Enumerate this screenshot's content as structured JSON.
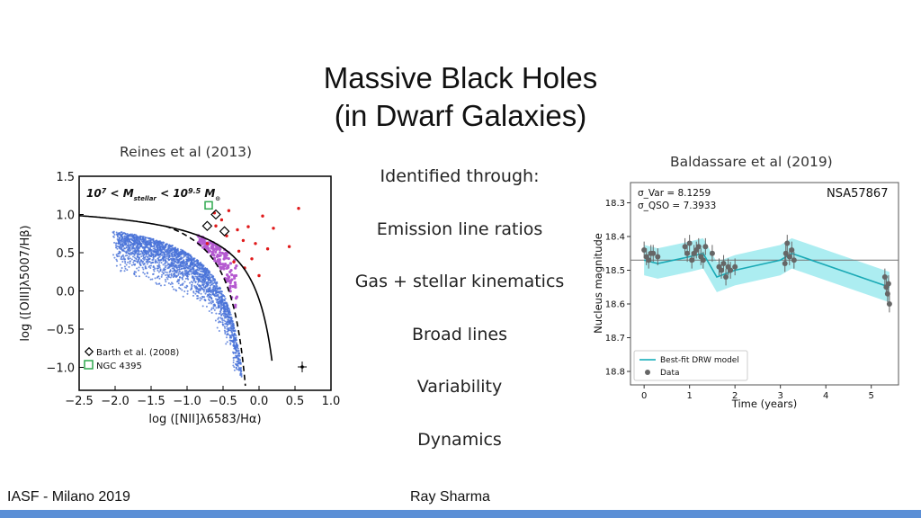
{
  "slide": {
    "title_line1": "Massive Black Holes",
    "title_line2": "(in Dwarf Galaxies)",
    "left_caption": "Reines et al (2013)",
    "right_caption": "Baldassare et al (2019)",
    "center_items": [
      "Identified through:",
      "Emission line ratios",
      "Gas + stellar kinematics",
      "Broad lines",
      "Variability",
      "Dynamics"
    ],
    "footer_left": "IASF - Milano 2019",
    "footer_center": "Ray Sharma",
    "accent_color": "#5b8fd6"
  },
  "chart_data": [
    {
      "type": "scatter",
      "title": "",
      "xlabel": "log ([NII]λ6583/Hα)",
      "ylabel": "log ([OIII]λ5007/Hβ)",
      "xlim": [
        -2.5,
        1.0
      ],
      "ylim": [
        -1.3,
        1.5
      ],
      "xticks": [
        "−2.5",
        "−2.0",
        "−1.5",
        "−1.0",
        "−0.5",
        "0.0",
        "0.5",
        "1.0"
      ],
      "yticks": [
        "1.5",
        "1.0",
        "0.5",
        "0.0",
        "−0.5",
        "−1.0"
      ],
      "annotation": "10⁷ < M_stellar < 10^9.5 M⊙",
      "legend": [
        "Barth et al. (2008)",
        "NGC 4395"
      ],
      "legend_position": "bottom-left",
      "colors": {
        "main": "#4a73d8",
        "composite": "#b45ad0",
        "agn": "#e0191a",
        "green": "#2fa84f"
      },
      "red_points": [
        [
          -0.62,
          1.02
        ],
        [
          -0.52,
          0.93
        ],
        [
          -0.42,
          1.05
        ],
        [
          -0.3,
          0.8
        ],
        [
          -0.22,
          0.66
        ],
        [
          -0.15,
          0.84
        ],
        [
          0.05,
          0.98
        ],
        [
          0.2,
          0.82
        ],
        [
          0.55,
          1.08
        ],
        [
          0.42,
          0.58
        ],
        [
          -0.05,
          0.62
        ],
        [
          -0.45,
          0.72
        ],
        [
          -0.28,
          0.52
        ],
        [
          -0.6,
          0.85
        ],
        [
          0.12,
          0.55
        ],
        [
          -0.1,
          0.42
        ],
        [
          -0.35,
          0.38
        ],
        [
          -0.72,
          0.62
        ],
        [
          -0.2,
          0.3
        ],
        [
          0.0,
          0.2
        ]
      ],
      "barth_points": [
        [
          -0.6,
          1.0
        ],
        [
          -0.72,
          0.85
        ],
        [
          -0.48,
          0.78
        ]
      ],
      "ngc4395": [
        -0.7,
        1.12
      ]
    },
    {
      "type": "line",
      "title": "",
      "xlabel": "Time (years)",
      "ylabel": "Nucleus magnitude",
      "xlim": [
        -0.3,
        5.6
      ],
      "ylim": [
        18.84,
        18.24
      ],
      "xticks": [
        0,
        1,
        2,
        3,
        4,
        5
      ],
      "yticks": [
        18.3,
        18.4,
        18.5,
        18.6,
        18.7,
        18.8
      ],
      "annotation_name": "NSA57867",
      "sigma_var": "σ_Var = 8.1259",
      "sigma_qso": "σ_QSO = 7.3933",
      "legend": [
        "Best-fit DRW model",
        "Data"
      ],
      "legend_position": "bottom-left",
      "mean_level": 18.47,
      "model": [
        [
          0.0,
          18.47
        ],
        [
          0.3,
          18.48
        ],
        [
          1.0,
          18.46
        ],
        [
          1.3,
          18.45
        ],
        [
          1.6,
          18.52
        ],
        [
          2.0,
          18.5
        ],
        [
          3.0,
          18.47
        ],
        [
          3.25,
          18.45
        ],
        [
          5.4,
          18.55
        ]
      ],
      "band_halfwidth": 0.045,
      "data": [
        [
          0.0,
          18.44
        ],
        [
          0.05,
          18.46
        ],
        [
          0.1,
          18.47
        ],
        [
          0.15,
          18.45
        ],
        [
          0.2,
          18.45
        ],
        [
          0.3,
          18.46
        ],
        [
          0.9,
          18.43
        ],
        [
          0.95,
          18.45
        ],
        [
          1.0,
          18.42
        ],
        [
          1.05,
          18.47
        ],
        [
          1.1,
          18.45
        ],
        [
          1.15,
          18.44
        ],
        [
          1.2,
          18.43
        ],
        [
          1.25,
          18.46
        ],
        [
          1.3,
          18.47
        ],
        [
          1.35,
          18.43
        ],
        [
          1.5,
          18.45
        ],
        [
          1.65,
          18.49
        ],
        [
          1.7,
          18.5
        ],
        [
          1.75,
          18.48
        ],
        [
          1.8,
          18.52
        ],
        [
          1.85,
          18.49
        ],
        [
          1.9,
          18.5
        ],
        [
          2.0,
          18.49
        ],
        [
          3.1,
          18.48
        ],
        [
          3.12,
          18.45
        ],
        [
          3.15,
          18.42
        ],
        [
          3.2,
          18.46
        ],
        [
          3.25,
          18.44
        ],
        [
          3.3,
          18.47
        ],
        [
          5.3,
          18.52
        ],
        [
          5.33,
          18.55
        ],
        [
          5.36,
          18.57
        ],
        [
          5.38,
          18.54
        ],
        [
          5.4,
          18.6
        ]
      ]
    }
  ]
}
